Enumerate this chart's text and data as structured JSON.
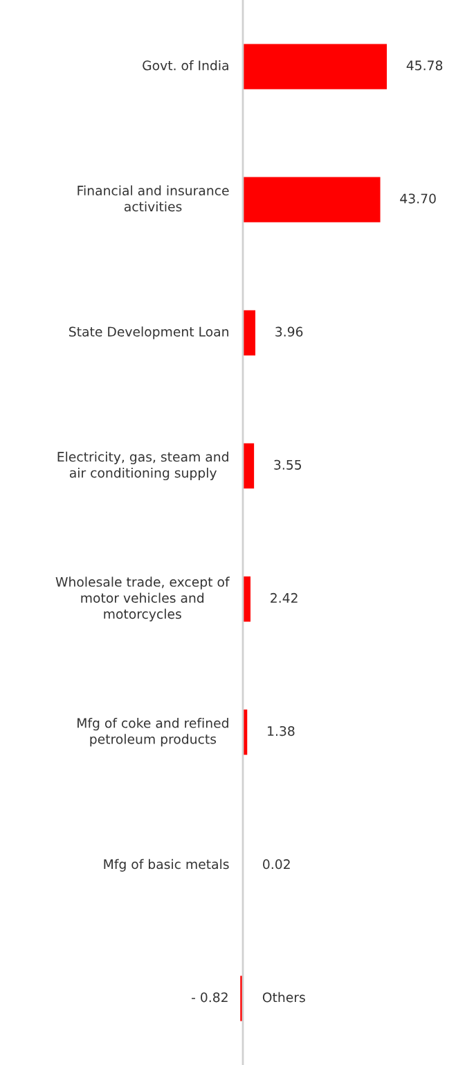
{
  "chart_data": {
    "type": "bar",
    "orientation": "horizontal",
    "categories": [
      "Govt. of India",
      "Financial and insurance\nactivities",
      "State Development Loan",
      "Electricity, gas, steam and\nair conditioning supply",
      "Wholesale trade, except of\nmotor vehicles and\nmotorcycles",
      "Mfg of coke and refined\npetroleum products",
      "Mfg of basic metals",
      "Others"
    ],
    "values": [
      45.78,
      43.7,
      3.96,
      3.55,
      2.42,
      1.38,
      0.02,
      -0.82
    ],
    "value_labels": [
      "45.78",
      "43.70",
      "3.96",
      "3.55",
      "2.42",
      "1.38",
      "0.02",
      "- 0.82"
    ],
    "color": "#ff0000"
  }
}
